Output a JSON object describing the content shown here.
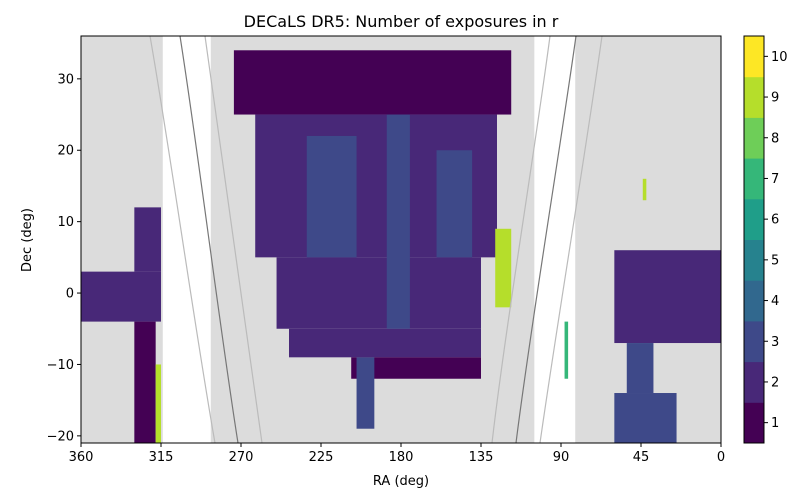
{
  "chart_data": {
    "type": "heatmap",
    "title": "DECaLS DR5: Number of exposures in r",
    "xlabel": "RA (deg)",
    "ylabel": "Dec (deg)",
    "x_reversed": true,
    "xlim": [
      360,
      0
    ],
    "ylim": [
      -21,
      36
    ],
    "x_ticks": [
      {
        "value": 360,
        "label": "360"
      },
      {
        "value": 315,
        "label": "315"
      },
      {
        "value": 270,
        "label": "270"
      },
      {
        "value": 225,
        "label": "225"
      },
      {
        "value": 180,
        "label": "180"
      },
      {
        "value": 135,
        "label": "135"
      },
      {
        "value": 90,
        "label": "90"
      },
      {
        "value": 45,
        "label": "45"
      },
      {
        "value": 0,
        "label": "0"
      }
    ],
    "y_ticks": [
      {
        "value": -20,
        "label": "−20"
      },
      {
        "value": -10,
        "label": "−10"
      },
      {
        "value": 0,
        "label": "0"
      },
      {
        "value": 10,
        "label": "10"
      },
      {
        "value": 20,
        "label": "20"
      },
      {
        "value": 30,
        "label": "30"
      }
    ],
    "colorbar": {
      "min": 0.5,
      "max": 10.5,
      "ticks": [
        {
          "value": 1,
          "label": "1"
        },
        {
          "value": 2,
          "label": "2"
        },
        {
          "value": 3,
          "label": "3"
        },
        {
          "value": 4,
          "label": "4"
        },
        {
          "value": 5,
          "label": "5"
        },
        {
          "value": 6,
          "label": "6"
        },
        {
          "value": 7,
          "label": "7"
        },
        {
          "value": 8,
          "label": "8"
        },
        {
          "value": 9,
          "label": "9"
        },
        {
          "value": 10,
          "label": "10"
        }
      ],
      "colors": [
        "#440154",
        "#482878",
        "#3e4989",
        "#31688e",
        "#26828e",
        "#1f9e89",
        "#35b779",
        "#6ece58",
        "#b5de2b",
        "#fde725"
      ]
    },
    "footprint_regions": [
      {
        "ra": [
          360,
          314
        ],
        "dec": [
          -21,
          36
        ],
        "level": 0
      },
      {
        "ra": [
          82,
          0
        ],
        "dec": [
          -21,
          36
        ],
        "level": 0
      },
      {
        "ra": [
          287,
          105
        ],
        "dec": [
          -21,
          36
        ],
        "level": 0
      }
    ],
    "coverage_regions": [
      {
        "ra": [
          274,
          118
        ],
        "dec": [
          25,
          34
        ],
        "level": 1
      },
      {
        "ra": [
          262,
          126
        ],
        "dec": [
          5,
          25
        ],
        "level": 2
      },
      {
        "ra": [
          250,
          135
        ],
        "dec": [
          -5,
          5
        ],
        "level": 2
      },
      {
        "ra": [
          243,
          135
        ],
        "dec": [
          -9,
          -5
        ],
        "level": 2
      },
      {
        "ra": [
          208,
          135
        ],
        "dec": [
          -12,
          -9
        ],
        "level": 1
      },
      {
        "ra": [
          205,
          195
        ],
        "dec": [
          -19,
          -9
        ],
        "level": 3
      },
      {
        "ra": [
          233,
          205
        ],
        "dec": [
          5,
          22
        ],
        "level": 3
      },
      {
        "ra": [
          188,
          175
        ],
        "dec": [
          -5,
          25
        ],
        "level": 3
      },
      {
        "ra": [
          160,
          140
        ],
        "dec": [
          5,
          20
        ],
        "level": 3
      },
      {
        "ra": [
          360,
          315
        ],
        "dec": [
          -4,
          3
        ],
        "level": 2
      },
      {
        "ra": [
          330,
          315
        ],
        "dec": [
          3,
          12
        ],
        "level": 2
      },
      {
        "ra": [
          330,
          318
        ],
        "dec": [
          -21,
          -4
        ],
        "level": 1
      },
      {
        "ra": [
          60,
          0
        ],
        "dec": [
          -7,
          6
        ],
        "level": 2
      },
      {
        "ra": [
          53,
          38
        ],
        "dec": [
          -14,
          -7
        ],
        "level": 3
      },
      {
        "ra": [
          60,
          25
        ],
        "dec": [
          -21,
          -14
        ],
        "level": 3
      },
      {
        "ra": [
          127,
          118
        ],
        "dec": [
          -2,
          9
        ],
        "level": 9
      },
      {
        "ra": [
          318,
          315
        ],
        "dec": [
          -21,
          -10
        ],
        "level": 9
      },
      {
        "ra": [
          88,
          86
        ],
        "dec": [
          -12,
          -4
        ],
        "level": 7
      },
      {
        "ra": [
          44,
          42
        ],
        "dec": [
          13,
          16
        ],
        "level": 9
      }
    ]
  }
}
